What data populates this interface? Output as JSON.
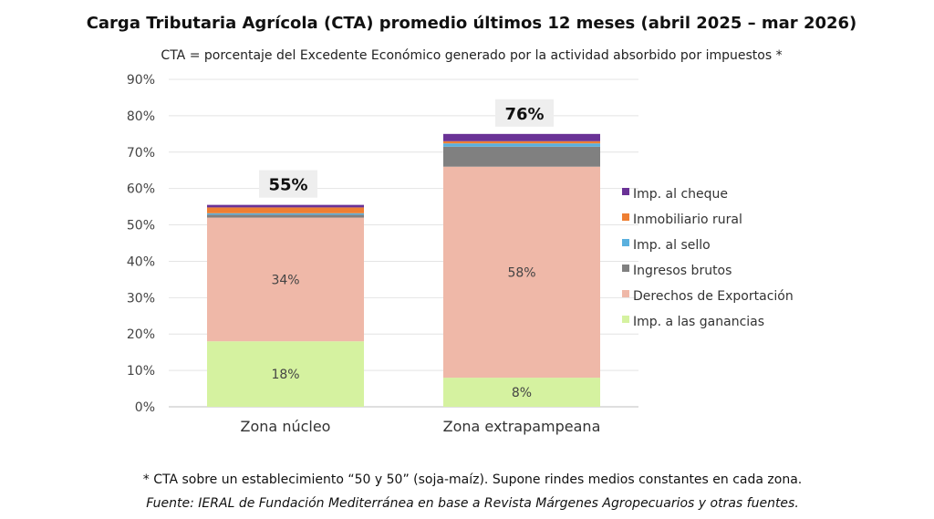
{
  "chart_data": {
    "type": "bar",
    "stacked": true,
    "title": "Carga Tributaria Agrícola (CTA) promedio últimos 12 meses (abril 2025 – mar 2026)",
    "subtitle": "CTA = porcentaje del Excedente Económico generado por la actividad absorbido por impuestos *",
    "categories": [
      "Zona núcleo",
      "Zona extrapampeana"
    ],
    "ylim": [
      0,
      90
    ],
    "y_ticks": [
      0,
      10,
      20,
      30,
      40,
      50,
      60,
      70,
      80,
      90
    ],
    "y_tick_format": "percent",
    "grid": true,
    "legend_position": "right",
    "totals": [
      "55%",
      "76%"
    ],
    "series": [
      {
        "name": "Imp. a las ganancias",
        "values": [
          18,
          8
        ],
        "labels": [
          "18%",
          "8%"
        ],
        "color": "#d5f2a0"
      },
      {
        "name": "Derechos de Exportación",
        "values": [
          34,
          58
        ],
        "labels": [
          "34%",
          "58%"
        ],
        "color": "#efb8a8"
      },
      {
        "name": "Ingresos brutos",
        "values": [
          0.8,
          5.5
        ],
        "labels": [
          "",
          ""
        ],
        "color": "#808080"
      },
      {
        "name": "Imp. al sello",
        "values": [
          0.4,
          0.9
        ],
        "labels": [
          "",
          ""
        ],
        "color": "#5ab0de"
      },
      {
        "name": "Inmobiliario rural",
        "values": [
          1.6,
          0.6
        ],
        "labels": [
          "",
          ""
        ],
        "color": "#ee7f33"
      },
      {
        "name": "Imp. al cheque",
        "values": [
          0.7,
          2.0
        ],
        "labels": [
          "",
          ""
        ],
        "color": "#6a3296"
      }
    ],
    "legend_order": [
      "Imp. al cheque",
      "Inmobiliario rural",
      "Imp. al sello",
      "Ingresos brutos",
      "Derechos de Exportación",
      "Imp. a las ganancias"
    ]
  },
  "footnote": "* CTA sobre un establecimiento “50 y 50” (soja-maíz). Supone rindes medios constantes en cada zona.",
  "source": "Fuente: IERAL de Fundación Mediterránea en base a Revista Márgenes Agropecuarios y otras fuentes."
}
